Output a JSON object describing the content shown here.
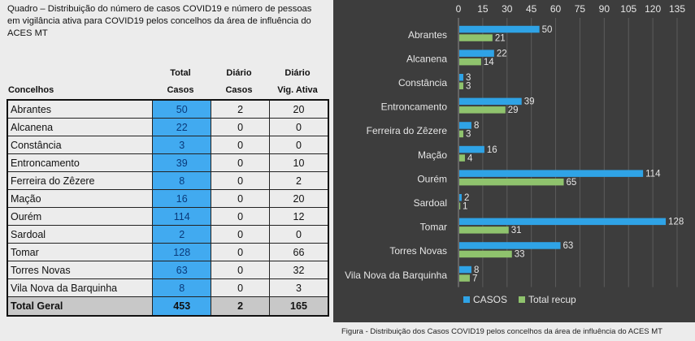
{
  "table": {
    "title": "Quadro – Distribuição do número de casos COVID19 e número de pessoas em vigilância ativa para COVID19 pelos concelhos da área de influência do ACES MT",
    "headers": {
      "col0": "Concelhos",
      "col1_top": "Total",
      "col1_bottom": "Casos",
      "col2_top": "Diário",
      "col2_bottom": "Casos",
      "col3_top": "Diário",
      "col3_bottom": "Vig. Ativa"
    },
    "rows": [
      {
        "name": "Abrantes",
        "total": "50",
        "diario": "2",
        "vig": "20"
      },
      {
        "name": "Alcanena",
        "total": "22",
        "diario": "0",
        "vig": "0"
      },
      {
        "name": "Constância",
        "total": "3",
        "diario": "0",
        "vig": "0"
      },
      {
        "name": "Entroncamento",
        "total": "39",
        "diario": "0",
        "vig": "10"
      },
      {
        "name": "Ferreira do Zêzere",
        "total": "8",
        "diario": "0",
        "vig": "2"
      },
      {
        "name": "Mação",
        "total": "16",
        "diario": "0",
        "vig": "20"
      },
      {
        "name": "Ourém",
        "total": "114",
        "diario": "0",
        "vig": "12"
      },
      {
        "name": "Sardoal",
        "total": "2",
        "diario": "0",
        "vig": "0"
      },
      {
        "name": "Tomar",
        "total": "128",
        "diario": "0",
        "vig": "66"
      },
      {
        "name": "Torres Novas",
        "total": "63",
        "diario": "0",
        "vig": "32"
      },
      {
        "name": "Vila Nova da Barquinha",
        "total": "8",
        "diario": "0",
        "vig": "3"
      }
    ],
    "total_row": {
      "name": "Total Geral",
      "total": "453",
      "diario": "2",
      "vig": "165"
    }
  },
  "caption": "Figura - Distribuição dos Casos COVID19 pelos concelhos da área de influência do ACES MT",
  "chart_data": {
    "type": "bar",
    "orientation": "horizontal",
    "categories": [
      "Abrantes",
      "Alcanena",
      "Constância",
      "Entroncamento",
      "Ferreira do Zêzere",
      "Mação",
      "Ourém",
      "Sardoal",
      "Tomar",
      "Torres Novas",
      "Vila Nova da Barquinha"
    ],
    "series": [
      {
        "name": "CASOS",
        "color": "#2fa3e6",
        "values": [
          50,
          22,
          3,
          39,
          8,
          16,
          114,
          2,
          128,
          63,
          8
        ]
      },
      {
        "name": "Total recup",
        "color": "#8fc36d",
        "values": [
          21,
          14,
          3,
          29,
          3,
          4,
          65,
          1,
          31,
          33,
          7
        ]
      }
    ],
    "xlim": [
      0,
      135
    ],
    "xticks": [
      0,
      15,
      30,
      45,
      60,
      75,
      90,
      105,
      120,
      135
    ],
    "grid": true,
    "legend": "bottom",
    "background": "#3d3d3d"
  }
}
